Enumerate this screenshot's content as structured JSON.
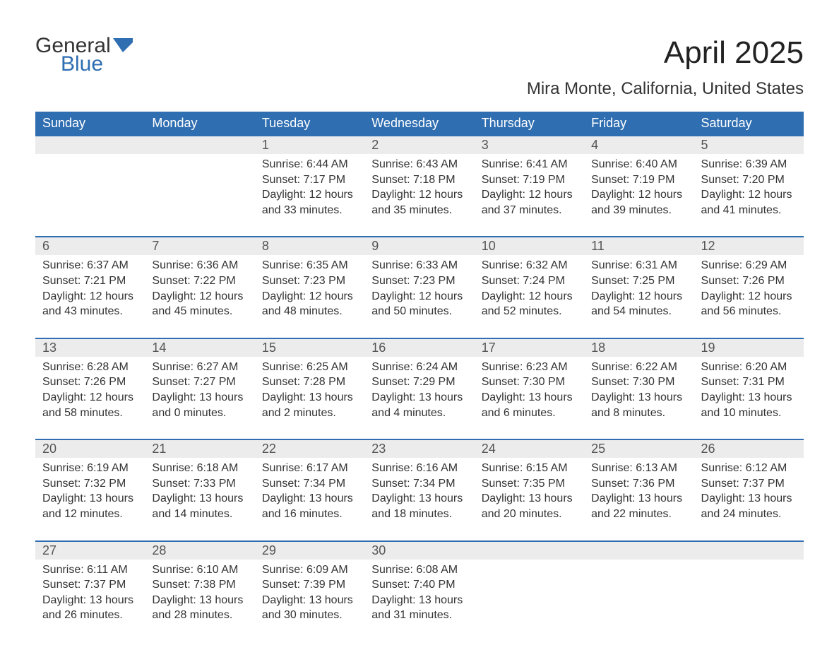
{
  "logo": {
    "top": "General",
    "bottom": "Blue",
    "flag_color": "#2f6eb1"
  },
  "title": "April 2025",
  "location": "Mira Monte, California, United States",
  "colors": {
    "header_bg": "#2f6eb1",
    "header_text": "#ffffff",
    "daynum_bg": "#ececec",
    "daynum_text": "#555555",
    "border": "#2f6eb1",
    "body_text": "#333333",
    "page_bg": "#ffffff"
  },
  "typography": {
    "title_fontsize": 44,
    "location_fontsize": 24,
    "header_fontsize": 18,
    "daynum_fontsize": 18,
    "body_fontsize": 16
  },
  "day_headers": [
    "Sunday",
    "Monday",
    "Tuesday",
    "Wednesday",
    "Thursday",
    "Friday",
    "Saturday"
  ],
  "weeks": [
    [
      null,
      null,
      {
        "n": "1",
        "sr": "Sunrise: 6:44 AM",
        "ss": "Sunset: 7:17 PM",
        "d1": "Daylight: 12 hours",
        "d2": "and 33 minutes."
      },
      {
        "n": "2",
        "sr": "Sunrise: 6:43 AM",
        "ss": "Sunset: 7:18 PM",
        "d1": "Daylight: 12 hours",
        "d2": "and 35 minutes."
      },
      {
        "n": "3",
        "sr": "Sunrise: 6:41 AM",
        "ss": "Sunset: 7:19 PM",
        "d1": "Daylight: 12 hours",
        "d2": "and 37 minutes."
      },
      {
        "n": "4",
        "sr": "Sunrise: 6:40 AM",
        "ss": "Sunset: 7:19 PM",
        "d1": "Daylight: 12 hours",
        "d2": "and 39 minutes."
      },
      {
        "n": "5",
        "sr": "Sunrise: 6:39 AM",
        "ss": "Sunset: 7:20 PM",
        "d1": "Daylight: 12 hours",
        "d2": "and 41 minutes."
      }
    ],
    [
      {
        "n": "6",
        "sr": "Sunrise: 6:37 AM",
        "ss": "Sunset: 7:21 PM",
        "d1": "Daylight: 12 hours",
        "d2": "and 43 minutes."
      },
      {
        "n": "7",
        "sr": "Sunrise: 6:36 AM",
        "ss": "Sunset: 7:22 PM",
        "d1": "Daylight: 12 hours",
        "d2": "and 45 minutes."
      },
      {
        "n": "8",
        "sr": "Sunrise: 6:35 AM",
        "ss": "Sunset: 7:23 PM",
        "d1": "Daylight: 12 hours",
        "d2": "and 48 minutes."
      },
      {
        "n": "9",
        "sr": "Sunrise: 6:33 AM",
        "ss": "Sunset: 7:23 PM",
        "d1": "Daylight: 12 hours",
        "d2": "and 50 minutes."
      },
      {
        "n": "10",
        "sr": "Sunrise: 6:32 AM",
        "ss": "Sunset: 7:24 PM",
        "d1": "Daylight: 12 hours",
        "d2": "and 52 minutes."
      },
      {
        "n": "11",
        "sr": "Sunrise: 6:31 AM",
        "ss": "Sunset: 7:25 PM",
        "d1": "Daylight: 12 hours",
        "d2": "and 54 minutes."
      },
      {
        "n": "12",
        "sr": "Sunrise: 6:29 AM",
        "ss": "Sunset: 7:26 PM",
        "d1": "Daylight: 12 hours",
        "d2": "and 56 minutes."
      }
    ],
    [
      {
        "n": "13",
        "sr": "Sunrise: 6:28 AM",
        "ss": "Sunset: 7:26 PM",
        "d1": "Daylight: 12 hours",
        "d2": "and 58 minutes."
      },
      {
        "n": "14",
        "sr": "Sunrise: 6:27 AM",
        "ss": "Sunset: 7:27 PM",
        "d1": "Daylight: 13 hours",
        "d2": "and 0 minutes."
      },
      {
        "n": "15",
        "sr": "Sunrise: 6:25 AM",
        "ss": "Sunset: 7:28 PM",
        "d1": "Daylight: 13 hours",
        "d2": "and 2 minutes."
      },
      {
        "n": "16",
        "sr": "Sunrise: 6:24 AM",
        "ss": "Sunset: 7:29 PM",
        "d1": "Daylight: 13 hours",
        "d2": "and 4 minutes."
      },
      {
        "n": "17",
        "sr": "Sunrise: 6:23 AM",
        "ss": "Sunset: 7:30 PM",
        "d1": "Daylight: 13 hours",
        "d2": "and 6 minutes."
      },
      {
        "n": "18",
        "sr": "Sunrise: 6:22 AM",
        "ss": "Sunset: 7:30 PM",
        "d1": "Daylight: 13 hours",
        "d2": "and 8 minutes."
      },
      {
        "n": "19",
        "sr": "Sunrise: 6:20 AM",
        "ss": "Sunset: 7:31 PM",
        "d1": "Daylight: 13 hours",
        "d2": "and 10 minutes."
      }
    ],
    [
      {
        "n": "20",
        "sr": "Sunrise: 6:19 AM",
        "ss": "Sunset: 7:32 PM",
        "d1": "Daylight: 13 hours",
        "d2": "and 12 minutes."
      },
      {
        "n": "21",
        "sr": "Sunrise: 6:18 AM",
        "ss": "Sunset: 7:33 PM",
        "d1": "Daylight: 13 hours",
        "d2": "and 14 minutes."
      },
      {
        "n": "22",
        "sr": "Sunrise: 6:17 AM",
        "ss": "Sunset: 7:34 PM",
        "d1": "Daylight: 13 hours",
        "d2": "and 16 minutes."
      },
      {
        "n": "23",
        "sr": "Sunrise: 6:16 AM",
        "ss": "Sunset: 7:34 PM",
        "d1": "Daylight: 13 hours",
        "d2": "and 18 minutes."
      },
      {
        "n": "24",
        "sr": "Sunrise: 6:15 AM",
        "ss": "Sunset: 7:35 PM",
        "d1": "Daylight: 13 hours",
        "d2": "and 20 minutes."
      },
      {
        "n": "25",
        "sr": "Sunrise: 6:13 AM",
        "ss": "Sunset: 7:36 PM",
        "d1": "Daylight: 13 hours",
        "d2": "and 22 minutes."
      },
      {
        "n": "26",
        "sr": "Sunrise: 6:12 AM",
        "ss": "Sunset: 7:37 PM",
        "d1": "Daylight: 13 hours",
        "d2": "and 24 minutes."
      }
    ],
    [
      {
        "n": "27",
        "sr": "Sunrise: 6:11 AM",
        "ss": "Sunset: 7:37 PM",
        "d1": "Daylight: 13 hours",
        "d2": "and 26 minutes."
      },
      {
        "n": "28",
        "sr": "Sunrise: 6:10 AM",
        "ss": "Sunset: 7:38 PM",
        "d1": "Daylight: 13 hours",
        "d2": "and 28 minutes."
      },
      {
        "n": "29",
        "sr": "Sunrise: 6:09 AM",
        "ss": "Sunset: 7:39 PM",
        "d1": "Daylight: 13 hours",
        "d2": "and 30 minutes."
      },
      {
        "n": "30",
        "sr": "Sunrise: 6:08 AM",
        "ss": "Sunset: 7:40 PM",
        "d1": "Daylight: 13 hours",
        "d2": "and 31 minutes."
      },
      null,
      null,
      null
    ]
  ]
}
